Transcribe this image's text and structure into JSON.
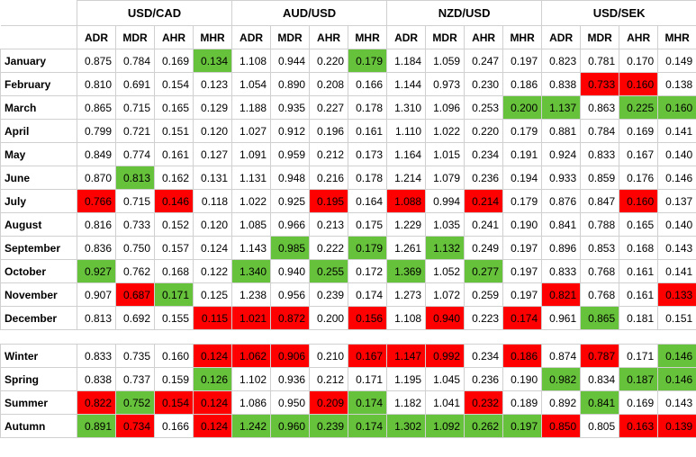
{
  "groups": [
    "USD/CAD",
    "AUD/USD",
    "NZD/USD",
    "USD/SEK"
  ],
  "metrics": [
    "ADR",
    "MDR",
    "AHR",
    "MHR"
  ],
  "colors": {
    "green": "#66c23a",
    "red": "#ff0000"
  },
  "months": [
    {
      "label": "January",
      "values": [
        "0.875",
        "0.784",
        "0.169",
        "0.134",
        "1.108",
        "0.944",
        "0.220",
        "0.179",
        "1.184",
        "1.059",
        "0.247",
        "0.197",
        "0.823",
        "0.781",
        "0.170",
        "0.149"
      ],
      "hl": [
        "",
        "",
        "",
        "g",
        "",
        "",
        "",
        "g",
        "",
        "",
        "",
        "",
        "",
        "",
        "",
        ""
      ]
    },
    {
      "label": "February",
      "values": [
        "0.810",
        "0.691",
        "0.154",
        "0.123",
        "1.054",
        "0.890",
        "0.208",
        "0.166",
        "1.144",
        "0.973",
        "0.230",
        "0.186",
        "0.838",
        "0.733",
        "0.160",
        "0.138"
      ],
      "hl": [
        "",
        "",
        "",
        "",
        "",
        "",
        "",
        "",
        "",
        "",
        "",
        "",
        "",
        "r",
        "r",
        ""
      ]
    },
    {
      "label": "March",
      "values": [
        "0.865",
        "0.715",
        "0.165",
        "0.129",
        "1.188",
        "0.935",
        "0.227",
        "0.178",
        "1.310",
        "1.096",
        "0.253",
        "0.200",
        "1.137",
        "0.863",
        "0.225",
        "0.160"
      ],
      "hl": [
        "",
        "",
        "",
        "",
        "",
        "",
        "",
        "",
        "",
        "",
        "",
        "g",
        "g",
        "",
        "g",
        "g"
      ]
    },
    {
      "label": "April",
      "values": [
        "0.799",
        "0.721",
        "0.151",
        "0.120",
        "1.027",
        "0.912",
        "0.196",
        "0.161",
        "1.110",
        "1.022",
        "0.220",
        "0.179",
        "0.881",
        "0.784",
        "0.169",
        "0.141"
      ],
      "hl": [
        "",
        "",
        "",
        "",
        "",
        "",
        "",
        "",
        "",
        "",
        "",
        "",
        "",
        "",
        "",
        ""
      ]
    },
    {
      "label": "May",
      "values": [
        "0.849",
        "0.774",
        "0.161",
        "0.127",
        "1.091",
        "0.959",
        "0.212",
        "0.173",
        "1.164",
        "1.015",
        "0.234",
        "0.191",
        "0.924",
        "0.833",
        "0.167",
        "0.140"
      ],
      "hl": [
        "",
        "",
        "",
        "",
        "",
        "",
        "",
        "",
        "",
        "",
        "",
        "",
        "",
        "",
        "",
        ""
      ]
    },
    {
      "label": "June",
      "values": [
        "0.870",
        "0.813",
        "0.162",
        "0.131",
        "1.131",
        "0.948",
        "0.216",
        "0.178",
        "1.214",
        "1.079",
        "0.236",
        "0.194",
        "0.933",
        "0.859",
        "0.176",
        "0.146"
      ],
      "hl": [
        "",
        "g",
        "",
        "",
        "",
        "",
        "",
        "",
        "",
        "",
        "",
        "",
        "",
        "",
        "",
        ""
      ]
    },
    {
      "label": "July",
      "values": [
        "0.766",
        "0.715",
        "0.146",
        "0.118",
        "1.022",
        "0.925",
        "0.195",
        "0.164",
        "1.088",
        "0.994",
        "0.214",
        "0.179",
        "0.876",
        "0.847",
        "0.160",
        "0.137"
      ],
      "hl": [
        "r",
        "",
        "r",
        "",
        "",
        "",
        "r",
        "",
        "r",
        "",
        "r",
        "",
        "",
        "",
        "r",
        ""
      ]
    },
    {
      "label": "August",
      "values": [
        "0.816",
        "0.733",
        "0.152",
        "0.120",
        "1.085",
        "0.966",
        "0.213",
        "0.175",
        "1.229",
        "1.035",
        "0.241",
        "0.190",
        "0.841",
        "0.788",
        "0.165",
        "0.140"
      ],
      "hl": [
        "",
        "",
        "",
        "",
        "",
        "",
        "",
        "",
        "",
        "",
        "",
        "",
        "",
        "",
        "",
        ""
      ]
    },
    {
      "label": "September",
      "values": [
        "0.836",
        "0.750",
        "0.157",
        "0.124",
        "1.143",
        "0.985",
        "0.222",
        "0.179",
        "1.261",
        "1.132",
        "0.249",
        "0.197",
        "0.896",
        "0.853",
        "0.168",
        "0.143"
      ],
      "hl": [
        "",
        "",
        "",
        "",
        "",
        "g",
        "",
        "g",
        "",
        "g",
        "",
        "",
        "",
        "",
        "",
        ""
      ]
    },
    {
      "label": "October",
      "values": [
        "0.927",
        "0.762",
        "0.168",
        "0.122",
        "1.340",
        "0.940",
        "0.255",
        "0.172",
        "1.369",
        "1.052",
        "0.277",
        "0.197",
        "0.833",
        "0.768",
        "0.161",
        "0.141"
      ],
      "hl": [
        "g",
        "",
        "",
        "",
        "g",
        "",
        "g",
        "",
        "g",
        "",
        "g",
        "",
        "",
        "",
        "",
        ""
      ]
    },
    {
      "label": "November",
      "values": [
        "0.907",
        "0.687",
        "0.171",
        "0.125",
        "1.238",
        "0.956",
        "0.239",
        "0.174",
        "1.273",
        "1.072",
        "0.259",
        "0.197",
        "0.821",
        "0.768",
        "0.161",
        "0.133"
      ],
      "hl": [
        "",
        "r",
        "g",
        "",
        "",
        "",
        "",
        "",
        "",
        "",
        "",
        "",
        "r",
        "",
        "",
        "r"
      ]
    },
    {
      "label": "December",
      "values": [
        "0.813",
        "0.692",
        "0.155",
        "0.115",
        "1.021",
        "0.872",
        "0.200",
        "0.156",
        "1.108",
        "0.940",
        "0.223",
        "0.174",
        "0.961",
        "0.865",
        "0.181",
        "0.151"
      ],
      "hl": [
        "",
        "",
        "",
        "r",
        "r",
        "r",
        "",
        "r",
        "",
        "r",
        "",
        "r",
        "",
        "g",
        "",
        ""
      ]
    }
  ],
  "seasons": [
    {
      "label": "Winter",
      "values": [
        "0.833",
        "0.735",
        "0.160",
        "0.124",
        "1.062",
        "0.906",
        "0.210",
        "0.167",
        "1.147",
        "0.992",
        "0.234",
        "0.186",
        "0.874",
        "0.787",
        "0.171",
        "0.146"
      ],
      "hl": [
        "",
        "",
        "",
        "r",
        "r",
        "r",
        "",
        "r",
        "r",
        "r",
        "",
        "r",
        "",
        "r",
        "",
        "g"
      ]
    },
    {
      "label": "Spring",
      "values": [
        "0.838",
        "0.737",
        "0.159",
        "0.126",
        "1.102",
        "0.936",
        "0.212",
        "0.171",
        "1.195",
        "1.045",
        "0.236",
        "0.190",
        "0.982",
        "0.834",
        "0.187",
        "0.146"
      ],
      "hl": [
        "",
        "",
        "",
        "g",
        "",
        "",
        "",
        "",
        "",
        "",
        "",
        "",
        "g",
        "",
        "g",
        "g"
      ]
    },
    {
      "label": "Summer",
      "values": [
        "0.822",
        "0.752",
        "0.154",
        "0.124",
        "1.086",
        "0.950",
        "0.209",
        "0.174",
        "1.182",
        "1.041",
        "0.232",
        "0.189",
        "0.892",
        "0.841",
        "0.169",
        "0.143"
      ],
      "hl": [
        "r",
        "g",
        "r",
        "r",
        "",
        "",
        "r",
        "g",
        "",
        "",
        "r",
        "",
        "",
        "g",
        "",
        ""
      ]
    },
    {
      "label": "Autumn",
      "values": [
        "0.891",
        "0.734",
        "0.166",
        "0.124",
        "1.242",
        "0.960",
        "0.239",
        "0.174",
        "1.302",
        "1.092",
        "0.262",
        "0.197",
        "0.850",
        "0.805",
        "0.163",
        "0.139"
      ],
      "hl": [
        "g",
        "r",
        "",
        "r",
        "g",
        "g",
        "g",
        "g",
        "g",
        "g",
        "g",
        "g",
        "r",
        "",
        "r",
        "r"
      ]
    }
  ]
}
